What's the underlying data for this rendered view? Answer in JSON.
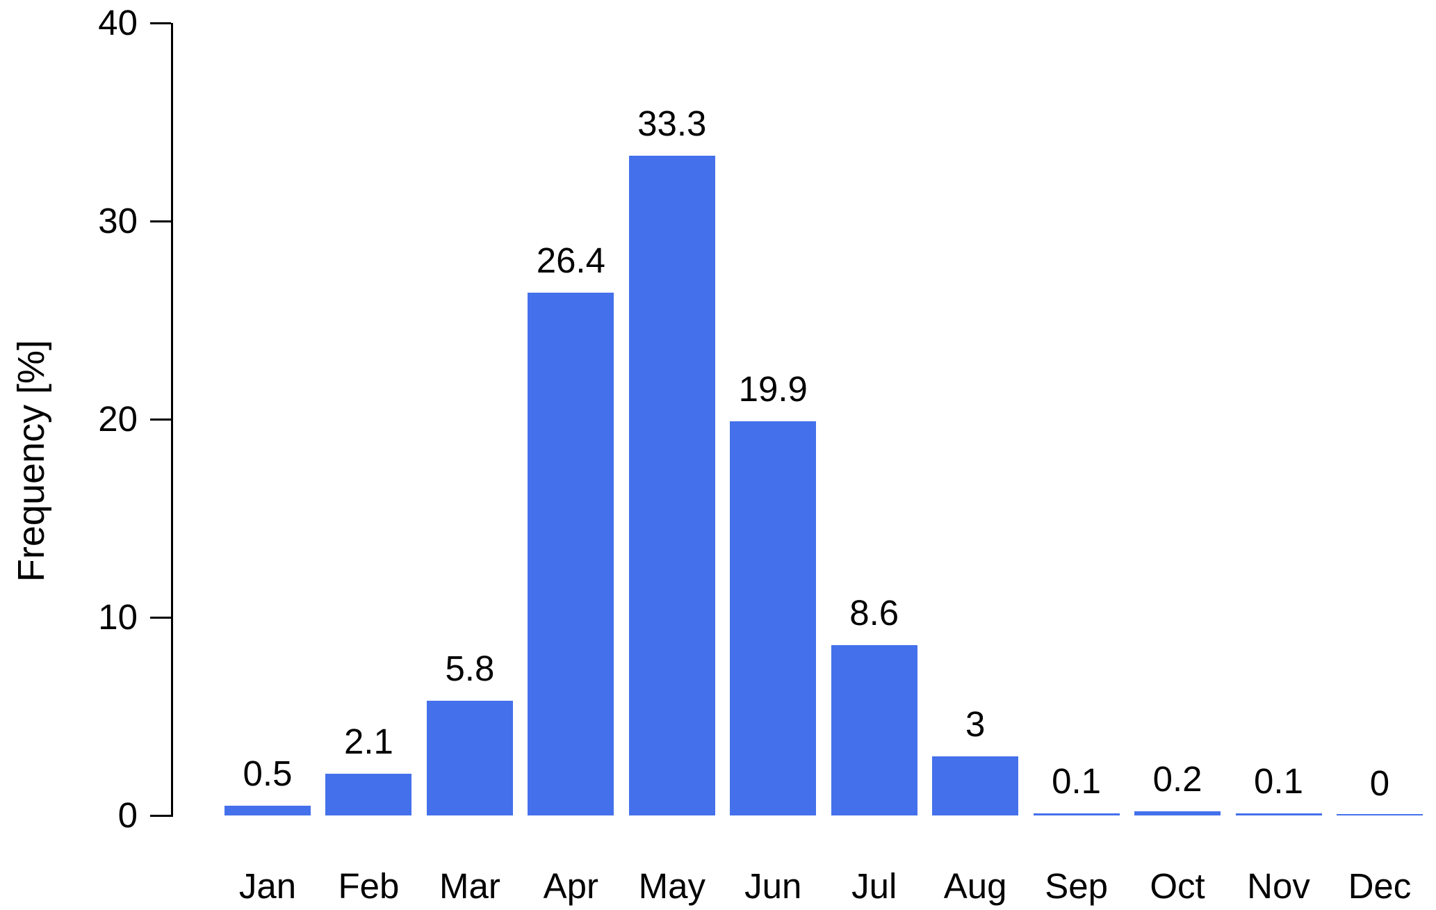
{
  "chart_data": {
    "type": "bar",
    "title": "",
    "xlabel": "",
    "ylabel": "Frequency [%]",
    "categories": [
      "Jan",
      "Feb",
      "Mar",
      "Apr",
      "May",
      "Jun",
      "Jul",
      "Aug",
      "Sep",
      "Oct",
      "Nov",
      "Dec"
    ],
    "values": [
      0.5,
      2.1,
      5.8,
      26.4,
      33.3,
      19.9,
      8.6,
      3,
      0.1,
      0.2,
      0.1,
      0
    ],
    "value_labels": [
      "0.5",
      "2.1",
      "5.8",
      "26.4",
      "33.3",
      "19.9",
      "8.6",
      "3",
      "0.1",
      "0.2",
      "0.1",
      "0"
    ],
    "ylim": [
      0,
      40
    ],
    "yticks": [
      0,
      10,
      20,
      30,
      40
    ],
    "grid": false,
    "legend": false,
    "bar_color": "#4470EB",
    "axis_color": "#000000",
    "text_color": "#000000",
    "background_color": "#FFFFFF"
  }
}
